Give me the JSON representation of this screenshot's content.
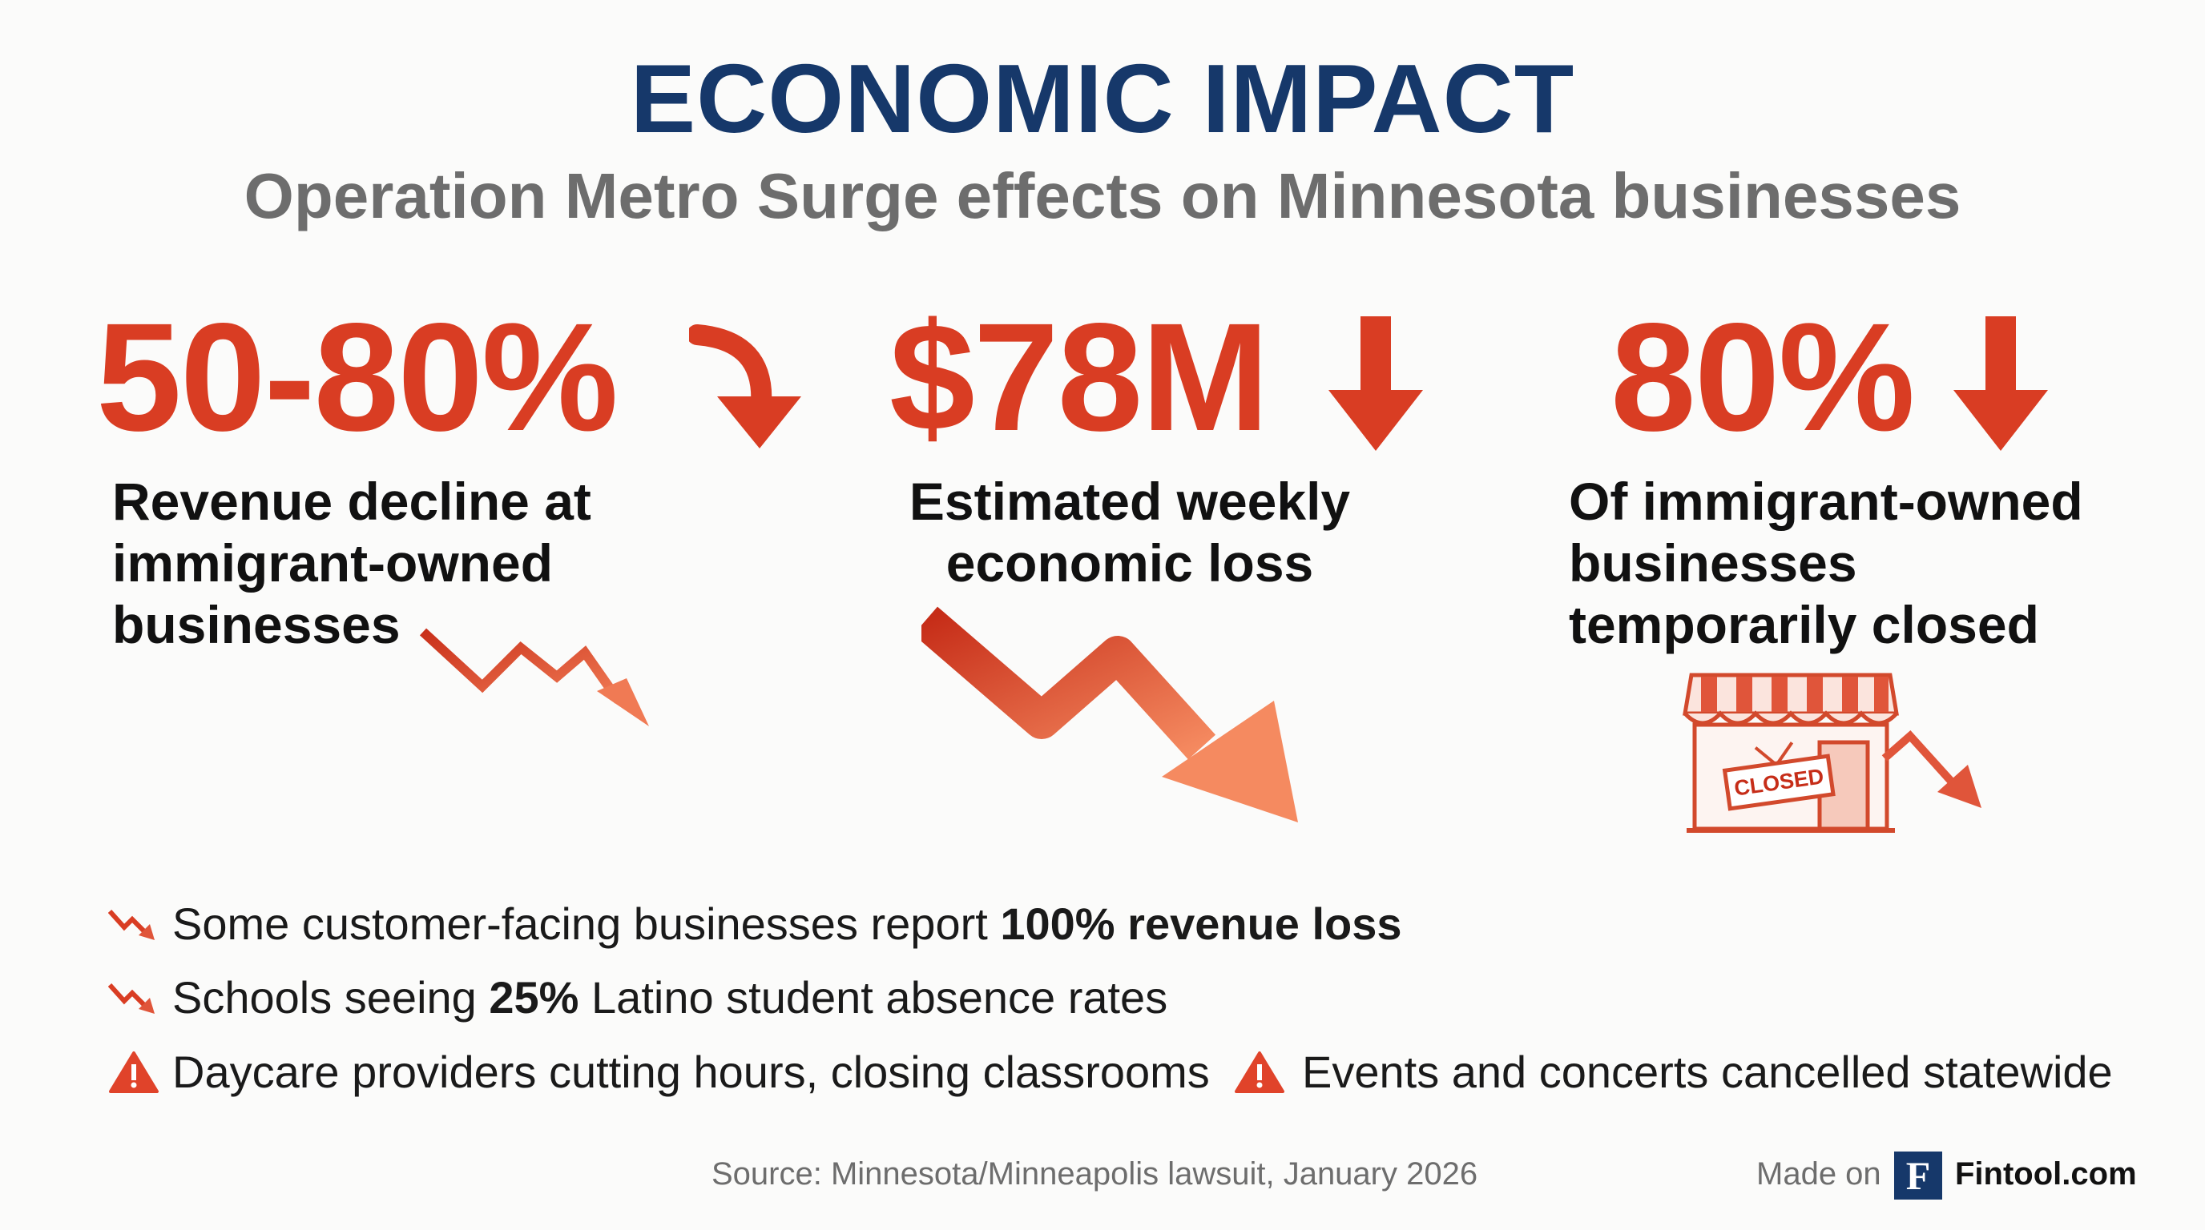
{
  "header": {
    "title": "ECONOMIC IMPACT",
    "subtitle": "Operation Metro Surge effects on Minnesota businesses"
  },
  "stats": [
    {
      "value": "50-80%",
      "label_lines": [
        "Revenue decline at",
        "immigrant-owned",
        "businesses"
      ],
      "icon": "curved-down-arrow-icon"
    },
    {
      "value": "$78M",
      "label_lines": [
        "Estimated weekly",
        "economic loss"
      ],
      "icon": "down-arrow-icon"
    },
    {
      "value": "80%",
      "label_lines": [
        "Of immigrant-owned",
        "businesses",
        "temporarily closed"
      ],
      "icon": "down-arrow-icon"
    }
  ],
  "illustrations": {
    "closed_sign": "CLOSED"
  },
  "bullets": [
    {
      "icon": "trend-down-icon",
      "before": "Some customer-facing businesses report ",
      "bold": "100% revenue loss",
      "after": ""
    },
    {
      "icon": "trend-down-icon",
      "before": "Schools seeing ",
      "bold": "25%",
      "after": " Latino student absence rates"
    },
    {
      "icon": "warning-icon",
      "text": "Daycare providers cutting hours, closing classrooms"
    },
    {
      "icon": "warning-icon",
      "text": "Events and concerts cancelled statewide"
    }
  ],
  "footer": {
    "source": "Source: Minnesota/Minneapolis lawsuit, January 2026",
    "made_on": "Made on",
    "brand_letter": "F",
    "brand_name": "Fintool.com"
  },
  "colors": {
    "title": "#16386a",
    "accent": "#d93d23",
    "subtitle": "#6d6d6d"
  }
}
